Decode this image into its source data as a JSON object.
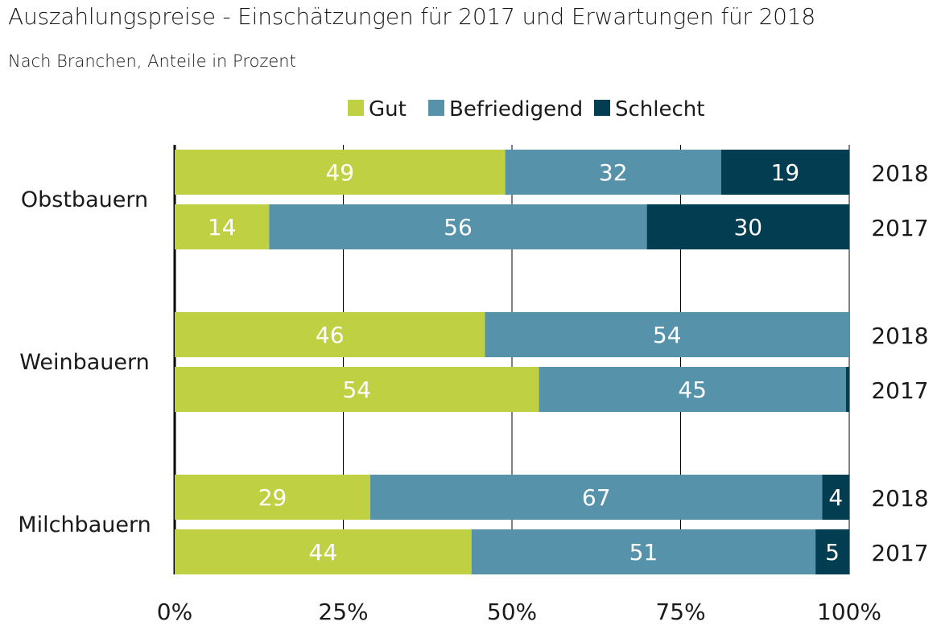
{
  "title": "Auszahlungspreise - Einschätzungen für 2017 und Erwartungen für 2018",
  "subtitle": "Nach Branchen, Anteile in Prozent",
  "colors": {
    "Gut": "#bfd043",
    "Befriedigend": "#5693ab",
    "Schlecht": "#033d52",
    "grid": "#000000",
    "label": "#ffffff"
  },
  "chart_data": {
    "type": "bar",
    "orientation": "horizontal",
    "stacked": true,
    "legend_position": "top",
    "grid": true,
    "xlim": [
      0,
      100
    ],
    "x_ticks": [
      "0%",
      "25%",
      "50%",
      "75%",
      "100%"
    ],
    "categories": [
      "Obstbauern",
      "Weinbauern",
      "Milchbauern"
    ],
    "series": [
      {
        "name": "Gut"
      },
      {
        "name": "Befriedigend"
      },
      {
        "name": "Schlecht"
      }
    ],
    "groups": [
      {
        "category": "Obstbauern",
        "rows": [
          {
            "year": "2018",
            "values": [
              49,
              32,
              19
            ],
            "labels": [
              "49",
              "32",
              "19"
            ]
          },
          {
            "year": "2017",
            "values": [
              14,
              56,
              30
            ],
            "labels": [
              "14",
              "56",
              "30"
            ]
          }
        ]
      },
      {
        "category": "Weinbauern",
        "rows": [
          {
            "year": "2018",
            "values": [
              46,
              54,
              0
            ],
            "labels": [
              "46",
              "54",
              ""
            ]
          },
          {
            "year": "2017",
            "values": [
              54,
              45.5,
              0.5
            ],
            "labels": [
              "54",
              "45",
              ""
            ]
          }
        ]
      },
      {
        "category": "Milchbauern",
        "rows": [
          {
            "year": "2018",
            "values": [
              29,
              67,
              4
            ],
            "labels": [
              "29",
              "67",
              "4"
            ]
          },
          {
            "year": "2017",
            "values": [
              44,
              51,
              5
            ],
            "labels": [
              "44",
              "51",
              "5"
            ]
          }
        ]
      }
    ]
  }
}
